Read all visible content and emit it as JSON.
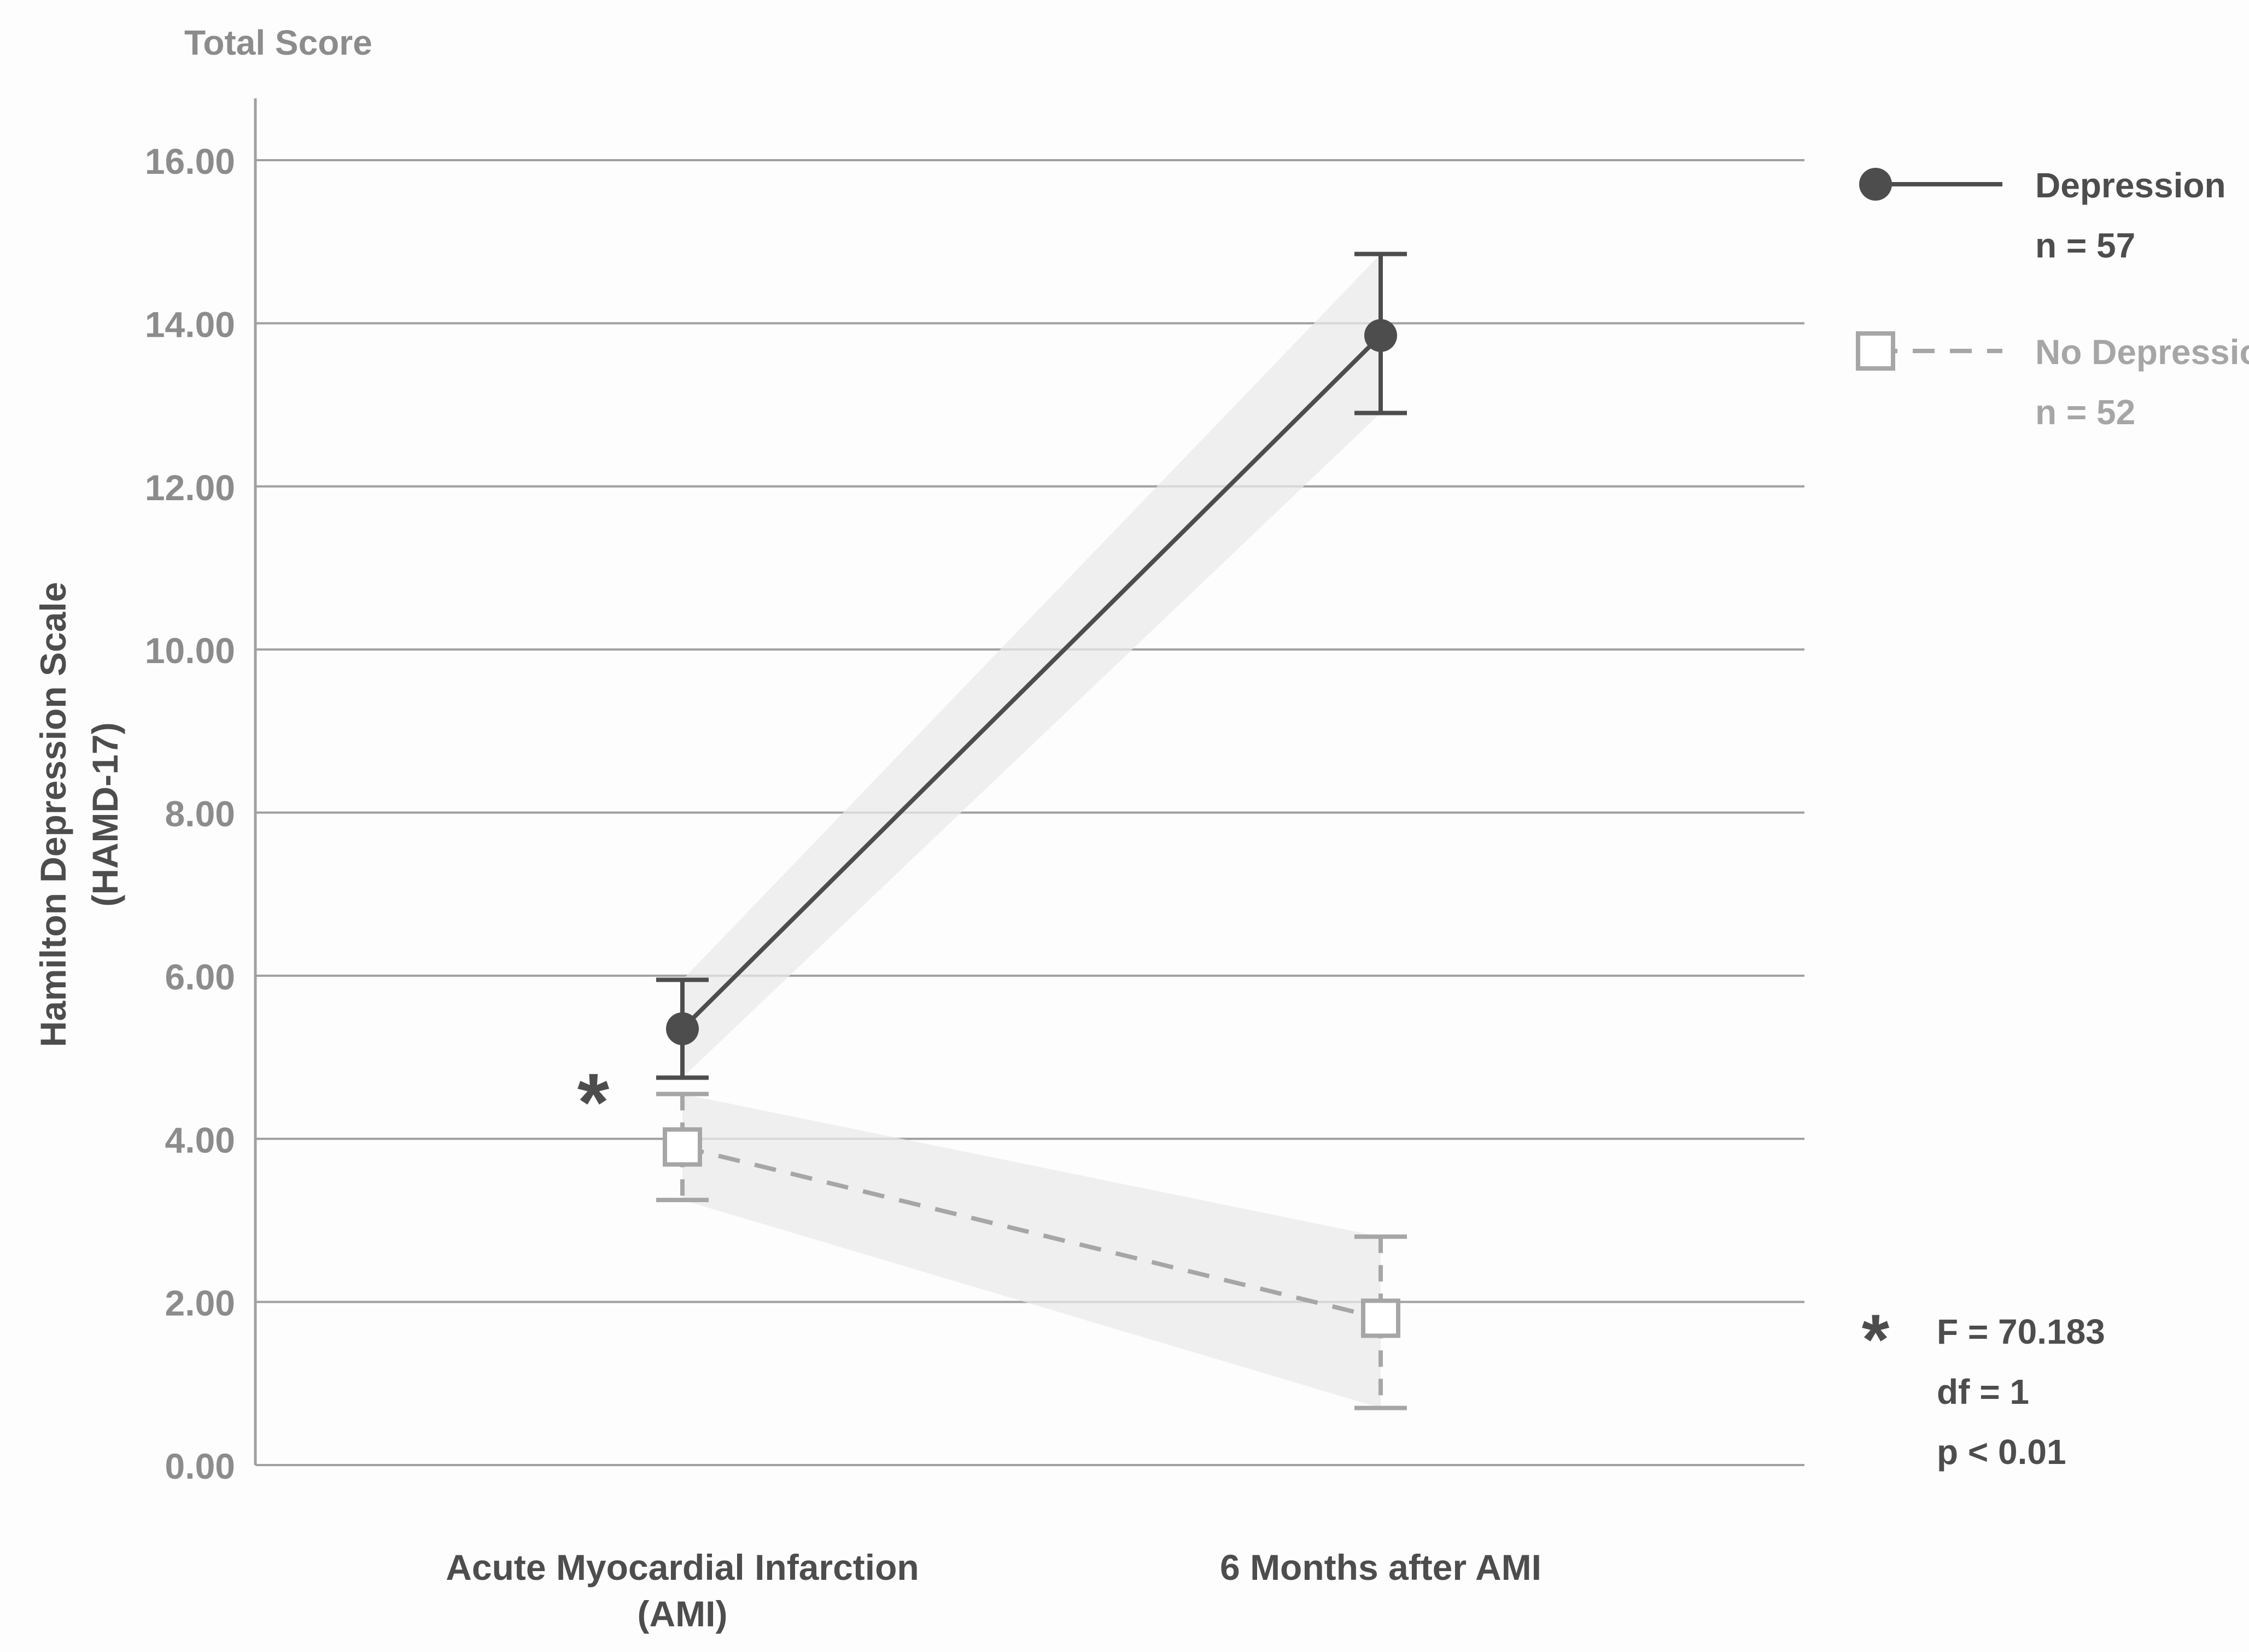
{
  "chart_data": {
    "type": "line",
    "title": "Total Score",
    "ylabel_lines": [
      "Hamilton Depression Scale",
      "(HAMD-17)"
    ],
    "xlabel": "",
    "categories": [
      {
        "lines": [
          "Acute Myocardial Infarction",
          "(AMI)"
        ]
      },
      {
        "lines": [
          "6 Months after AMI"
        ]
      }
    ],
    "ylim": [
      0,
      16
    ],
    "yticks": [
      "0.00",
      "2.00",
      "4.00",
      "6.00",
      "8.00",
      "10.00",
      "12.00",
      "14.00",
      "16.00"
    ],
    "ytick_values": [
      0,
      2,
      4,
      6,
      8,
      10,
      12,
      14,
      16
    ],
    "grid": true,
    "legend_position": "top-right",
    "series": [
      {
        "name": "Depression",
        "n_label": "n = 57",
        "marker": "circle",
        "line": "solid",
        "color": "#4d4d4d",
        "values": [
          5.35,
          13.85
        ],
        "error_low": [
          4.75,
          12.9
        ],
        "error_high": [
          5.95,
          14.85
        ]
      },
      {
        "name": "No Depression",
        "n_label": "n = 52",
        "marker": "square",
        "line": "dashed",
        "color": "#a6a6a6",
        "values": [
          3.9,
          1.8
        ],
        "error_low": [
          3.25,
          0.7
        ],
        "error_high": [
          4.55,
          2.8
        ]
      }
    ],
    "significance": {
      "marker": "*",
      "at_category": 0,
      "stats": [
        "F = 70.183",
        "df = 1",
        "p < 0.01"
      ]
    },
    "colors": {
      "axis_text": "#8c8c8c",
      "grid": "#a0a0a0",
      "band": "#e9e9e9",
      "dark": "#4d4d4d"
    }
  }
}
